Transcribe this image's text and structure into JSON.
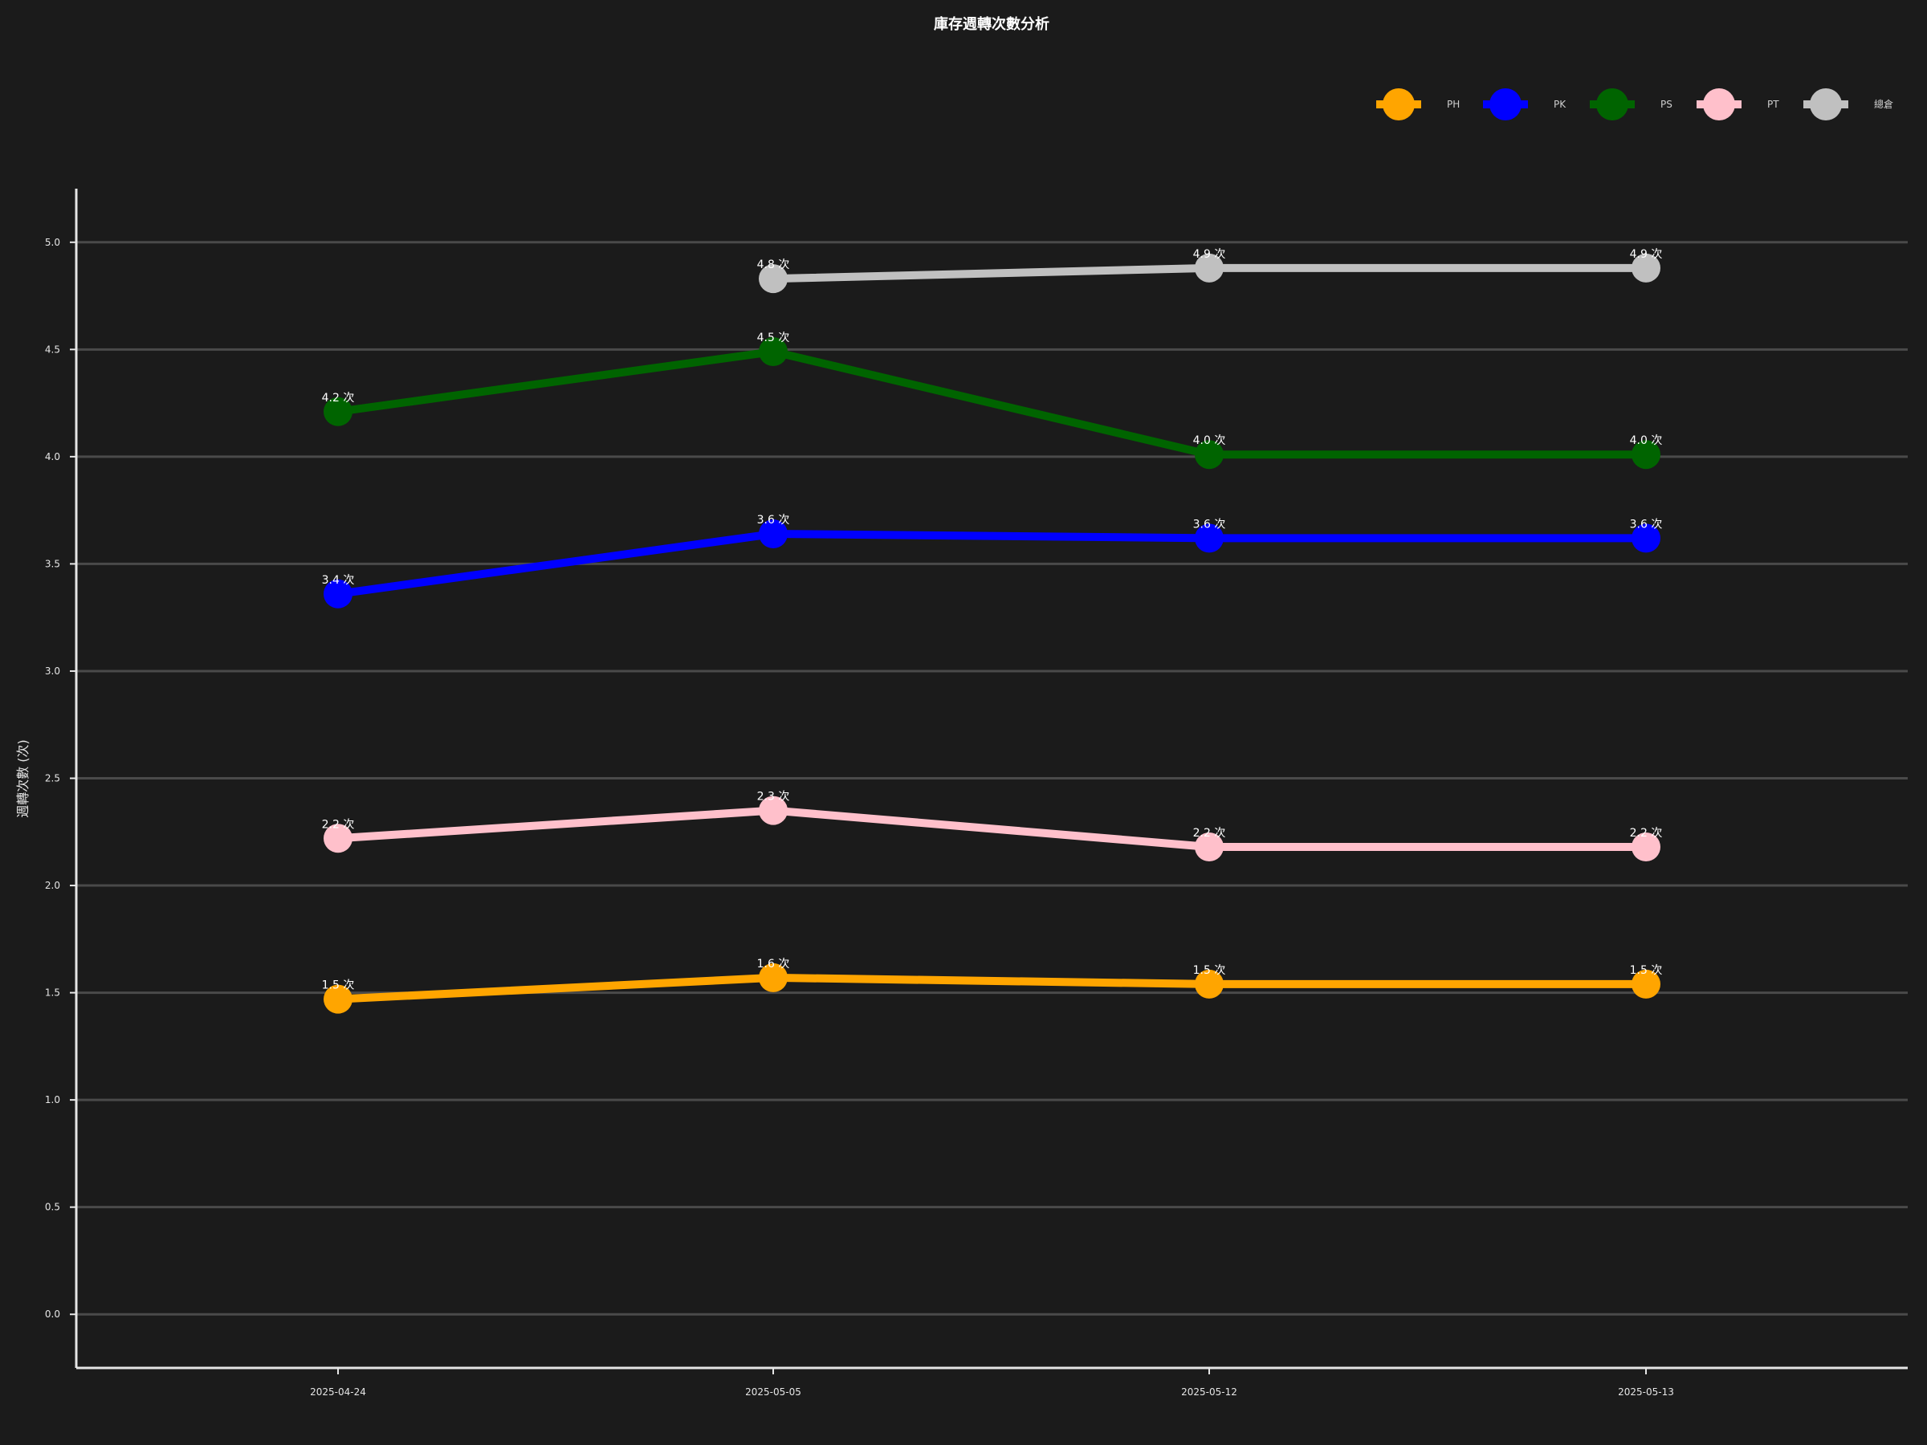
{
  "chart_data": {
    "type": "line",
    "title": "庫存週轉次數分析",
    "xlabel": "",
    "ylabel": "週轉次數 (次)",
    "categories": [
      "2025-04-24",
      "2025-05-05",
      "2025-05-12",
      "2025-05-13"
    ],
    "ylim": [
      -0.25,
      5.25
    ],
    "yticks": [
      "0.0",
      "0.5",
      "1.0",
      "1.5",
      "2.0",
      "2.5",
      "3.0",
      "3.5",
      "4.0",
      "4.5",
      "5.0"
    ],
    "grid": "horizontal",
    "legend_position": "top-right",
    "label_suffix": " 次",
    "series": [
      {
        "name": "PH",
        "color": "#ffa500",
        "values": [
          1.47,
          1.57,
          1.54,
          1.54
        ],
        "labels": [
          "1.5",
          "1.6",
          "1.5",
          "1.5"
        ]
      },
      {
        "name": "PK",
        "color": "#0000ff",
        "values": [
          3.36,
          3.64,
          3.62,
          3.62
        ],
        "labels": [
          "3.4",
          "3.6",
          "3.6",
          "3.6"
        ]
      },
      {
        "name": "PS",
        "color": "#006400",
        "values": [
          4.21,
          4.49,
          4.01,
          4.01
        ],
        "labels": [
          "4.2",
          "4.5",
          "4.0",
          "4.0"
        ]
      },
      {
        "name": "PT",
        "color": "#ffc0cb",
        "values": [
          2.22,
          2.35,
          2.18,
          2.18
        ],
        "labels": [
          "2.2",
          "2.3",
          "2.2",
          "2.2"
        ]
      },
      {
        "name": "總倉",
        "color": "#c0c0c0",
        "values": [
          null,
          4.83,
          4.88,
          4.88
        ],
        "labels": [
          null,
          "4.8",
          "4.9",
          "4.9"
        ]
      }
    ]
  }
}
